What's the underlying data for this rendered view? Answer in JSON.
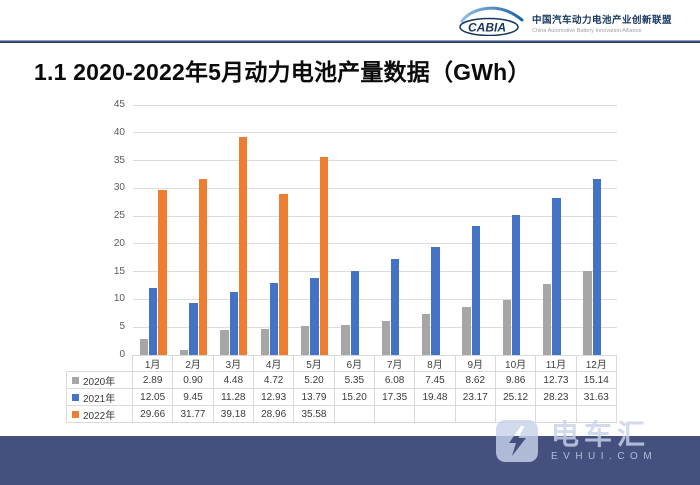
{
  "header": {
    "logo_text": "CABIA",
    "org_cn": "中国汽车动力电池产业创新联盟",
    "org_en": "China Automotive Battery Innovation Alliance"
  },
  "title": "1.1 2020-2022年5月动力电池产量数据（GWh）",
  "chart_data": {
    "type": "bar",
    "title": "2020-2022年5月动力电池产量数据（GWh）",
    "xlabel": "",
    "ylabel": "",
    "ylim": [
      0,
      45
    ],
    "ytick_step": 5,
    "grid": true,
    "legend_position": "data-table-left",
    "categories": [
      "1月",
      "2月",
      "3月",
      "4月",
      "5月",
      "6月",
      "7月",
      "8月",
      "9月",
      "10月",
      "11月",
      "12月"
    ],
    "series": [
      {
        "name": "2020年",
        "color": "#a6a6a6",
        "values": [
          2.89,
          0.9,
          4.48,
          4.72,
          5.2,
          5.35,
          6.08,
          7.45,
          8.62,
          9.86,
          12.73,
          15.14
        ]
      },
      {
        "name": "2021年",
        "color": "#4472c4",
        "values": [
          12.05,
          9.45,
          11.28,
          12.93,
          13.79,
          15.2,
          17.35,
          19.48,
          23.17,
          25.12,
          28.23,
          31.63
        ]
      },
      {
        "name": "2022年",
        "color": "#ed7d31",
        "values": [
          29.66,
          31.77,
          39.18,
          28.96,
          35.58,
          null,
          null,
          null,
          null,
          null,
          null,
          null
        ]
      }
    ]
  },
  "watermark": {
    "brand": "电车汇",
    "domain": "EVHUI.COM"
  },
  "colors": {
    "footer_band": "#45507f",
    "gridline": "#dcdcdc",
    "table_border": "#d9d9d9",
    "axis_text": "#595959",
    "logo_navy": "#17365d",
    "swoosh_blue": "#2f86c8"
  }
}
